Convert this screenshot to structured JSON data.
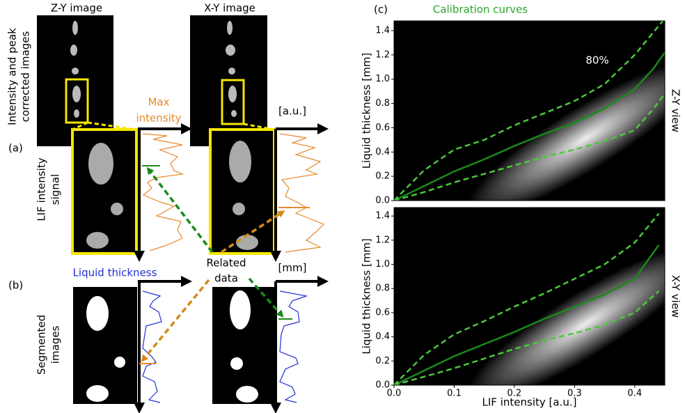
{
  "panel_a": {
    "label": "(a)",
    "row_label": [
      "Intensity and peak",
      "corrected images"
    ],
    "zy_title": "Z-Y image",
    "xy_title": "X-Y image",
    "max_intensity": [
      "Max",
      "intensity"
    ],
    "unit": "[a.u.]",
    "signal_label": [
      "LIF intensity",
      "signal"
    ]
  },
  "panel_b": {
    "label": "(b)",
    "liquid_thickness": "Liquid thickness",
    "unit": "[mm]",
    "row_label": [
      "Segmented",
      "images"
    ]
  },
  "related_data": [
    "Related",
    "data"
  ],
  "panel_c": {
    "label": "(c)"
  },
  "chart_data": [
    {
      "type": "line",
      "title": "Calibration curves",
      "ylabel": "Liquid thickness [mm]",
      "view_label": "Z-Y view",
      "annotation": "80%",
      "x": [
        0,
        0.05,
        0.1,
        0.15,
        0.2,
        0.25,
        0.3,
        0.35,
        0.4,
        0.43,
        0.45
      ],
      "series": [
        {
          "color": "#1a8a1a",
          "dashed": false,
          "values": [
            0,
            0.12,
            0.24,
            0.34,
            0.45,
            0.55,
            0.64,
            0.76,
            0.92,
            1.08,
            1.22
          ]
        },
        {
          "color": "#4cc83c",
          "dashed": true,
          "values": [
            0,
            0.25,
            0.42,
            0.5,
            0.62,
            0.72,
            0.82,
            0.96,
            1.2,
            1.38,
            1.5
          ]
        },
        {
          "color": "#4cc83c",
          "dashed": true,
          "values": [
            0,
            0.07,
            0.15,
            0.22,
            0.29,
            0.36,
            0.42,
            0.49,
            0.58,
            0.75,
            0.88
          ]
        }
      ],
      "xlim": [
        0,
        0.45
      ],
      "ylim": [
        0,
        1.48
      ],
      "yticks": [
        {
          "value": 0,
          "label": "0.0"
        },
        0.2,
        0.4,
        0.6,
        0.8,
        {
          "value": 1,
          "label": "1.0"
        },
        1.2,
        1.4
      ]
    },
    {
      "type": "line",
      "ylabel": "Liquid thickness [mm]",
      "xlabel": "LIF intensity [a.u.]",
      "view_label": "X-Y view",
      "x": [
        0,
        0.05,
        0.1,
        0.15,
        0.2,
        0.25,
        0.3,
        0.35,
        0.4,
        0.44
      ],
      "series": [
        {
          "color": "#1a8a1a",
          "dashed": false,
          "values": [
            0,
            0.12,
            0.24,
            0.34,
            0.44,
            0.55,
            0.65,
            0.75,
            0.88,
            1.16
          ]
        },
        {
          "color": "#4cc83c",
          "dashed": true,
          "values": [
            0,
            0.25,
            0.42,
            0.53,
            0.65,
            0.76,
            0.88,
            1.0,
            1.18,
            1.42
          ]
        },
        {
          "color": "#4cc83c",
          "dashed": true,
          "values": [
            0,
            0.07,
            0.14,
            0.22,
            0.3,
            0.37,
            0.43,
            0.5,
            0.6,
            0.78
          ]
        }
      ],
      "xlim": [
        0,
        0.45
      ],
      "ylim": [
        0,
        1.47
      ],
      "xticks": [
        {
          "value": 0,
          "label": "0.0"
        },
        0.1,
        0.2,
        0.3,
        0.4
      ],
      "yticks": [
        {
          "value": 0,
          "label": "0.0"
        },
        0.2,
        0.4,
        0.6,
        0.8,
        {
          "value": 1,
          "label": "1.0"
        },
        1.2,
        1.4
      ]
    }
  ]
}
